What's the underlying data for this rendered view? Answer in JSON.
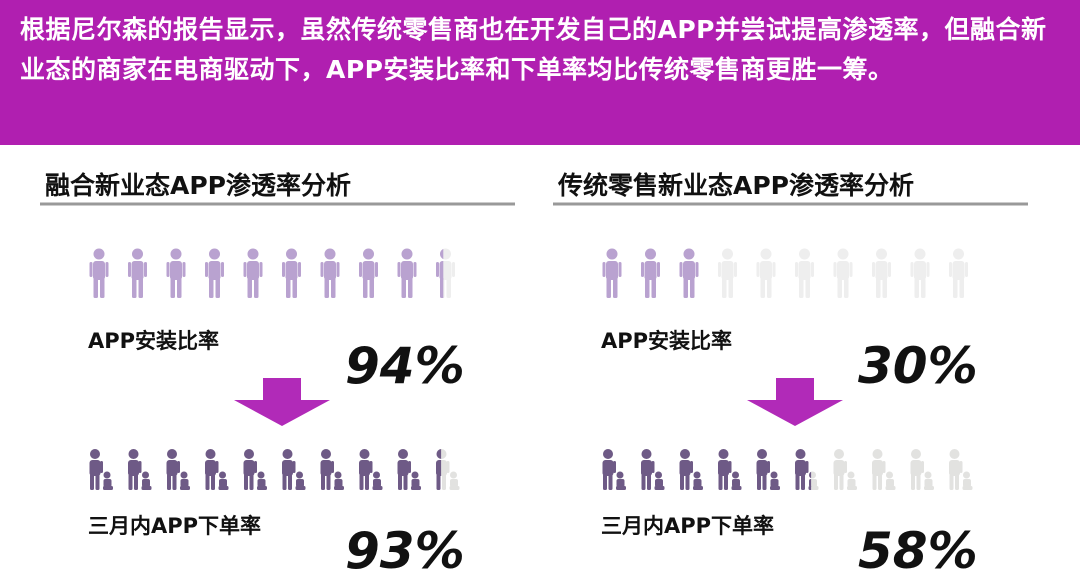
{
  "header": {
    "text": "根据尼尔森的报告显示，虽然传统零售商也在开发自己的APP并尝试提高渗透率，但融合新业态的商家在电商驱动下，APP安装比率和下单率均比传统零售商更胜一筹。"
  },
  "panels": [
    {
      "title": "融合新业态APP渗透率分析",
      "metrics": [
        {
          "label": "APP安装比率",
          "value": 94,
          "value_label": "94%"
        },
        {
          "label": "三月内APP下单率",
          "value": 93,
          "value_label": "93%"
        }
      ]
    },
    {
      "title": "传统零售新业态APP渗透率分析",
      "metrics": [
        {
          "label": "APP安装比率",
          "value": 30,
          "value_label": "30%"
        },
        {
          "label": "三月内APP下单率",
          "value": 58,
          "value_label": "58%"
        }
      ]
    }
  ]
}
